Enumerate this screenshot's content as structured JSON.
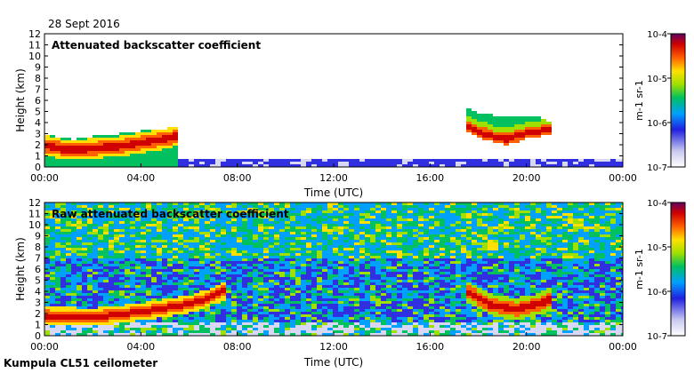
{
  "header": {
    "date": "28 Sept 2016"
  },
  "footer": {
    "station": "Kumpula CL51 ceilometer"
  },
  "chart_data": [
    {
      "type": "heatmap",
      "title": "Attenuated backscatter coefficient",
      "xlabel": "Time (UTC)",
      "ylabel": "Height (km)",
      "xticks": [
        "00:00",
        "04:00",
        "08:00",
        "12:00",
        "16:00",
        "20:00",
        "00:00"
      ],
      "yticks": [
        "0",
        "1",
        "2",
        "3",
        "4",
        "5",
        "6",
        "7",
        "8",
        "9",
        "10",
        "11",
        "12"
      ],
      "xlim_hours": [
        0,
        24
      ],
      "ylim_km": [
        0,
        12
      ],
      "colorbar": {
        "unit": "m-1 sr-1",
        "ticks": [
          "10-7",
          "10-6",
          "10-5",
          "10-4"
        ],
        "log_range": [
          -7,
          -4
        ]
      },
      "features": [
        {
          "name": "boundary layer aerosol",
          "t_hours": [
            0,
            1,
            2,
            3,
            4,
            5,
            5.5
          ],
          "top_km": [
            3.0,
            2.6,
            2.9,
            3.1,
            3.4,
            3.6,
            3.8
          ],
          "center_km": [
            2.0,
            1.6,
            1.8,
            2.0,
            2.3,
            2.7,
            3.0
          ]
        },
        {
          "name": "cloud",
          "t_hours": [
            17.3,
            18,
            19,
            20,
            21
          ],
          "top_km": [
            5.5,
            5.0,
            4.6,
            4.8,
            4.2
          ],
          "center_km": [
            4.0,
            3.2,
            2.6,
            3.2,
            3.5
          ]
        }
      ]
    },
    {
      "type": "heatmap",
      "title": "Raw attenuated backscatter coefficient",
      "xlabel": "Time (UTC)",
      "ylabel": "Height (km)",
      "xticks": [
        "00:00",
        "04:00",
        "08:00",
        "12:00",
        "16:00",
        "20:00",
        "00:00"
      ],
      "yticks": [
        "0",
        "1",
        "2",
        "3",
        "4",
        "5",
        "6",
        "7",
        "8",
        "9",
        "10",
        "11",
        "12"
      ],
      "xlim_hours": [
        0,
        24
      ],
      "ylim_km": [
        0,
        12
      ],
      "colorbar": {
        "unit": "m-1 sr-1",
        "ticks": [
          "10-7",
          "10-6",
          "10-5",
          "10-4"
        ],
        "log_range": [
          -7,
          -4
        ]
      },
      "features": [
        {
          "name": "boundary layer aerosol",
          "t_hours": [
            0,
            2,
            4,
            6,
            7,
            7.5
          ],
          "center_km": [
            1.9,
            1.8,
            2.3,
            3.0,
            3.8,
            4.3
          ]
        },
        {
          "name": "cloud",
          "t_hours": [
            17.5,
            18.5,
            19.5,
            20.5,
            21
          ],
          "center_km": [
            4.0,
            2.8,
            2.5,
            3.0,
            3.6
          ]
        }
      ]
    }
  ]
}
